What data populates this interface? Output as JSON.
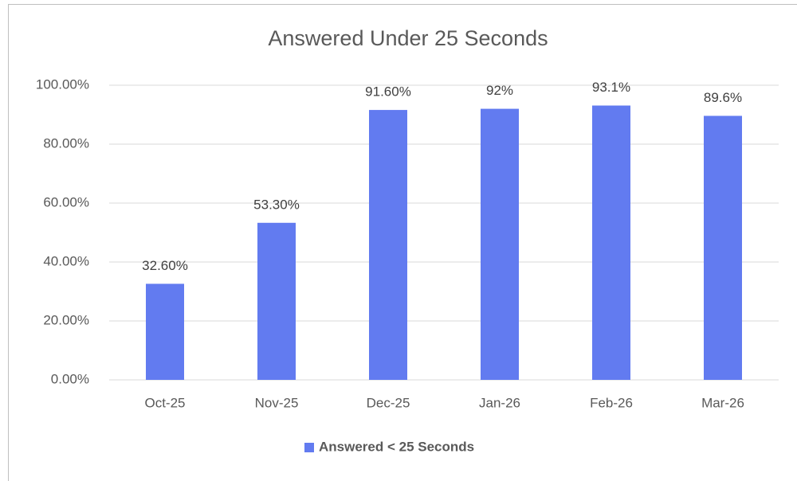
{
  "chart_data": {
    "type": "bar",
    "title": "Answered Under 25 Seconds",
    "categories": [
      "Oct-25",
      "Nov-25",
      "Dec-25",
      "Jan-26",
      "Feb-26",
      "Mar-26"
    ],
    "series": [
      {
        "name": "Answered < 25 Seconds",
        "color": "#627bf0",
        "values": [
          32.6,
          53.3,
          91.6,
          92,
          93.1,
          89.6
        ],
        "value_labels": [
          "32.60%",
          "53.30%",
          "91.60%",
          "92%",
          "93.1%",
          "89.6%"
        ]
      }
    ],
    "ylim": [
      0,
      100
    ],
    "yticks": [
      {
        "value": 0,
        "label": "0.00%"
      },
      {
        "value": 20,
        "label": "20.00%"
      },
      {
        "value": 40,
        "label": "40.00%"
      },
      {
        "value": 60,
        "label": "60.00%"
      },
      {
        "value": 80,
        "label": "80.00%"
      },
      {
        "value": 100,
        "label": "100.00%"
      }
    ],
    "grid": true,
    "legend": "bottom"
  }
}
